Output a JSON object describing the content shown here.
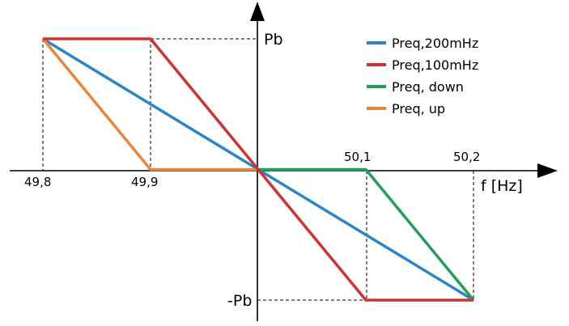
{
  "chart_data": {
    "type": "line",
    "xlabel": "f [Hz]",
    "y_labels": {
      "positive": "Pb",
      "negative": "-Pb"
    },
    "x_ticks": [
      "49,8",
      "49,9",
      "50,1",
      "50,2"
    ],
    "x_range": [
      49.8,
      50.2
    ],
    "y_range": [
      -1,
      1
    ],
    "grid": false,
    "legend_position": "top-right",
    "series": [
      {
        "name": "Preq,200mHz",
        "color": "#2a86c7",
        "points": [
          [
            49.8,
            1
          ],
          [
            50.2,
            -1
          ]
        ]
      },
      {
        "name": "Preq,100mHz",
        "color": "#d03232",
        "points": [
          [
            49.8,
            1
          ],
          [
            49.9,
            1
          ],
          [
            50.1,
            -1
          ],
          [
            50.2,
            -1
          ]
        ]
      },
      {
        "name": "Preq, down",
        "color": "#21a05a",
        "points": [
          [
            50.0,
            0
          ],
          [
            50.1,
            0
          ],
          [
            50.2,
            -1
          ]
        ]
      },
      {
        "name": "Preq, up",
        "color": "#e8873a",
        "points": [
          [
            49.8,
            1
          ],
          [
            49.9,
            0
          ],
          [
            50.0,
            0
          ]
        ]
      }
    ]
  }
}
